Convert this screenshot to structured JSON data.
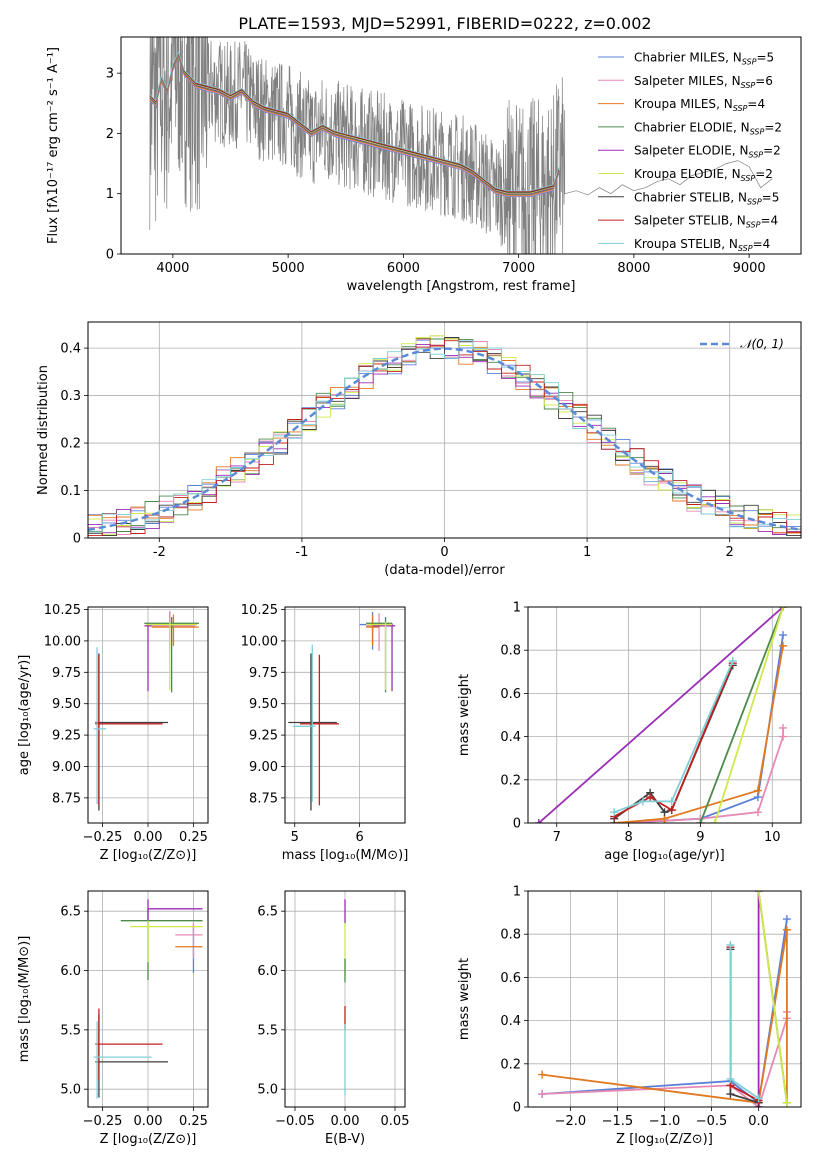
{
  "figure_title": "PLATE=1593, MJD=52991, FIBERID=0222, z=0.002",
  "models": [
    {
      "name": "Chabrier MILES",
      "nssp": "5",
      "color": "#5b80d8"
    },
    {
      "name": "Salpeter MILES",
      "nssp": "6",
      "color": "#e58ab5"
    },
    {
      "name": "Kroupa MILES",
      "nssp": "4",
      "color": "#e07a20"
    },
    {
      "name": "Chabrier ELODIE",
      "nssp": "2",
      "color": "#4c8a4c"
    },
    {
      "name": "Salpeter ELODIE",
      "nssp": "2",
      "color": "#9a2db5"
    },
    {
      "name": "Kroupa ELODIE",
      "nssp": "2",
      "color": "#cfe84a"
    },
    {
      "name": "Chabrier STELIB",
      "nssp": "5",
      "color": "#3f3f3f"
    },
    {
      "name": "Salpeter STELIB",
      "nssp": "4",
      "color": "#c0201f"
    },
    {
      "name": "Kroupa STELIB",
      "nssp": "4",
      "color": "#7fcfd8"
    }
  ],
  "legend_nssp_prefix": "N",
  "legend_nssp_sub": "SSP",
  "chart_data": [
    {
      "id": "spectrum",
      "type": "line",
      "title": "PLATE=1593, MJD=52991, FIBERID=0222, z=0.002",
      "xlabel": "wavelength [Angstrom, rest frame]",
      "ylabel": "Flux [fλ10⁻¹⁷ erg cm⁻² s⁻¹ A⁻¹]",
      "xlim": [
        3550,
        9450
      ],
      "ylim": [
        0,
        3.6
      ],
      "xticks": [
        4000,
        5000,
        6000,
        7000,
        8000,
        9000
      ],
      "yticks": [
        0,
        1,
        2,
        3
      ],
      "grid": false,
      "legend_position": "top-right",
      "data_color": "#808080",
      "model_x": [
        3800,
        3850,
        3900,
        3950,
        4000,
        4050,
        4100,
        4150,
        4200,
        4300,
        4400,
        4500,
        4600,
        4700,
        4800,
        4900,
        5000,
        5100,
        5200,
        5300,
        5400,
        5500,
        5600,
        5700,
        5800,
        5900,
        6000,
        6100,
        6200,
        6300,
        6400,
        6500,
        6600,
        6700,
        6800,
        6900,
        7000,
        7100,
        7200,
        7300,
        7350
      ],
      "model_y": [
        2.6,
        2.5,
        2.9,
        2.7,
        3.1,
        3.3,
        3.0,
        2.9,
        2.8,
        2.75,
        2.7,
        2.6,
        2.7,
        2.5,
        2.4,
        2.35,
        2.3,
        2.15,
        2.0,
        2.1,
        2.0,
        1.95,
        1.9,
        1.85,
        1.8,
        1.75,
        1.7,
        1.65,
        1.6,
        1.55,
        1.5,
        1.45,
        1.35,
        1.2,
        1.05,
        1.0,
        1.0,
        1.0,
        1.05,
        1.1,
        1.4
      ],
      "data_tail_x": [
        7400,
        7500,
        7600,
        7700,
        7800,
        7900,
        8000,
        8100,
        8200,
        8300,
        8400,
        8500,
        8600,
        8700,
        8800,
        8900,
        9000,
        9100,
        9200
      ],
      "data_tail_y": [
        1.0,
        1.05,
        0.98,
        1.1,
        1.0,
        1.15,
        1.05,
        1.1,
        1.2,
        1.25,
        1.15,
        1.3,
        1.35,
        1.4,
        1.5,
        1.55,
        1.45,
        1.1,
        1.25
      ],
      "noisy_range": [
        3800,
        7400
      ]
    },
    {
      "id": "residuals",
      "type": "line",
      "xlabel": "(data-model)/error",
      "ylabel": "Normed distribution",
      "xlim": [
        -2.5,
        2.5
      ],
      "ylim": [
        0,
        0.455
      ],
      "xticks": [
        -2,
        -1,
        0,
        1,
        2
      ],
      "yticks": [
        0.0,
        0.1,
        0.2,
        0.3,
        0.4
      ],
      "grid": true,
      "legend_position": "top-right",
      "gaussian_label": "𝒩(0, 1)",
      "gaussian_color": "#5b8bd8",
      "bin_width": 0.1
    },
    {
      "id": "age-z",
      "type": "scatter",
      "xlabel": "Z [log₁₀(Z/Z⊙)]",
      "ylabel": "age  [log₁₀(age/yr)]",
      "xlim": [
        -0.33,
        0.33
      ],
      "ylim": [
        8.55,
        10.27
      ],
      "xticks": [
        -0.25,
        0.0,
        0.25
      ],
      "xtick_labels": [
        "−0.25",
        "0.00",
        "0.25"
      ],
      "yticks": [
        8.75,
        9.0,
        9.25,
        9.5,
        9.75,
        10.0,
        10.25
      ],
      "ytick_labels": [
        "8.75",
        "9.00",
        "9.25",
        "9.50",
        "9.75",
        "10.00",
        "10.25"
      ],
      "grid": true,
      "points": [
        {
          "model": 0,
          "x": 0.12,
          "y": 10.13,
          "xerr": [
            0.13,
            0.15
          ],
          "yerr": [
            0.2,
            0.1
          ]
        },
        {
          "model": 1,
          "x": 0.12,
          "y": 10.12,
          "xerr": [
            0.12,
            0.14
          ],
          "yerr": [
            0.2,
            0.12
          ]
        },
        {
          "model": 2,
          "x": 0.14,
          "y": 10.11,
          "xerr": [
            0.12,
            0.14
          ],
          "yerr": [
            0.15,
            0.1
          ]
        },
        {
          "model": 3,
          "x": 0.13,
          "y": 10.14,
          "xerr": [
            0.15,
            0.15
          ],
          "yerr": [
            0.55,
            0.05
          ]
        },
        {
          "model": 4,
          "x": 0.0,
          "y": 10.12,
          "xerr": [
            0.02,
            0.02
          ],
          "yerr": [
            0.52,
            0.02
          ]
        },
        {
          "model": 5,
          "x": 0.12,
          "y": 10.13,
          "xerr": [
            0.13,
            0.15
          ],
          "yerr": [
            0.52,
            0.02
          ]
        },
        {
          "model": 6,
          "x": -0.27,
          "y": 9.35,
          "xerr": [
            0.02,
            0.38
          ],
          "yerr": [
            0.7,
            0.55
          ]
        },
        {
          "model": 7,
          "x": -0.27,
          "y": 9.34,
          "xerr": [
            0.02,
            0.35
          ],
          "yerr": [
            0.65,
            0.55
          ]
        },
        {
          "model": 8,
          "x": -0.28,
          "y": 9.3,
          "xerr": [
            0.02,
            0.05
          ],
          "yerr": [
            0.6,
            0.65
          ]
        }
      ]
    },
    {
      "id": "age-mass",
      "type": "scatter",
      "xlabel": "mass [log₁₀(M/M⊙)]",
      "ylabel": "",
      "xlim": [
        4.85,
        6.7
      ],
      "ylim": [
        8.55,
        10.27
      ],
      "xticks": [
        5,
        6
      ],
      "yticks": [
        8.75,
        9.0,
        9.25,
        9.5,
        9.75,
        10.0,
        10.25
      ],
      "ytick_labels": [
        "8.75",
        "9.00",
        "9.25",
        "9.50",
        "9.75",
        "10.00",
        "10.25"
      ],
      "grid": true,
      "points": [
        {
          "model": 0,
          "x": 6.2,
          "y": 10.13,
          "xerr": [
            0.2,
            0.1
          ],
          "yerr": [
            0.2,
            0.1
          ]
        },
        {
          "model": 1,
          "x": 6.3,
          "y": 10.12,
          "xerr": [
            0.2,
            0.1
          ],
          "yerr": [
            0.2,
            0.1
          ]
        },
        {
          "model": 2,
          "x": 6.2,
          "y": 10.11,
          "xerr": [
            0.1,
            0.1
          ],
          "yerr": [
            0.15,
            0.1
          ]
        },
        {
          "model": 3,
          "x": 6.4,
          "y": 10.14,
          "xerr": [
            0.3,
            0.1
          ],
          "yerr": [
            0.55,
            0.05
          ]
        },
        {
          "model": 4,
          "x": 6.5,
          "y": 10.12,
          "xerr": [
            0.3,
            0.05
          ],
          "yerr": [
            0.52,
            0.02
          ]
        },
        {
          "model": 5,
          "x": 6.4,
          "y": 10.13,
          "xerr": [
            0.3,
            0.1
          ],
          "yerr": [
            0.52,
            0.02
          ]
        },
        {
          "model": 6,
          "x": 5.25,
          "y": 9.35,
          "xerr": [
            0.35,
            0.4
          ],
          "yerr": [
            0.7,
            0.55
          ]
        },
        {
          "model": 7,
          "x": 5.38,
          "y": 9.34,
          "xerr": [
            0.3,
            0.3
          ],
          "yerr": [
            0.65,
            0.55
          ]
        },
        {
          "model": 8,
          "x": 5.27,
          "y": 9.32,
          "xerr": [
            0.3,
            0.05
          ],
          "yerr": [
            0.6,
            0.65
          ]
        }
      ]
    },
    {
      "id": "weight-age",
      "type": "line",
      "xlabel": "age  [log₁₀(age/yr)]",
      "ylabel": "mass weight",
      "xlim": [
        6.6,
        10.4
      ],
      "ylim": [
        0,
        1.0
      ],
      "xticks": [
        7,
        8,
        9,
        10
      ],
      "yticks": [
        0.0,
        0.2,
        0.4,
        0.6,
        0.8,
        1.0
      ],
      "grid": true,
      "series": [
        {
          "model": 0,
          "x": [
            7.8,
            8.5,
            9.0,
            9.8,
            10.15
          ],
          "y": [
            0.0,
            0.01,
            0.02,
            0.12,
            0.87
          ]
        },
        {
          "model": 1,
          "x": [
            7.8,
            8.5,
            9.0,
            9.8,
            10.15,
            10.15
          ],
          "y": [
            0.0,
            0.01,
            0.02,
            0.05,
            0.4,
            0.44
          ]
        },
        {
          "model": 2,
          "x": [
            7.8,
            8.5,
            9.8,
            10.15
          ],
          "y": [
            0.0,
            0.02,
            0.15,
            0.82
          ]
        },
        {
          "model": 3,
          "x": [
            9.0,
            10.15
          ],
          "y": [
            0.0,
            1.0
          ]
        },
        {
          "model": 4,
          "x": [
            6.75,
            10.15
          ],
          "y": [
            0.0,
            1.0
          ]
        },
        {
          "model": 5,
          "x": [
            9.2,
            10.15
          ],
          "y": [
            0.0,
            1.0
          ]
        },
        {
          "model": 6,
          "x": [
            7.8,
            8.3,
            8.5,
            8.6,
            9.45
          ],
          "y": [
            0.02,
            0.14,
            0.05,
            0.06,
            0.73
          ]
        },
        {
          "model": 7,
          "x": [
            7.8,
            8.3,
            8.6,
            9.45
          ],
          "y": [
            0.03,
            0.12,
            0.06,
            0.74
          ]
        },
        {
          "model": 8,
          "x": [
            7.8,
            8.2,
            8.6,
            9.45
          ],
          "y": [
            0.05,
            0.1,
            0.1,
            0.75
          ]
        }
      ]
    },
    {
      "id": "mass-z",
      "type": "scatter",
      "xlabel": "Z [log₁₀(Z/Z⊙)]",
      "ylabel": "mass [log₁₀(M/M⊙)]",
      "xlim": [
        -0.33,
        0.33
      ],
      "ylim": [
        4.85,
        6.67
      ],
      "xticks": [
        -0.25,
        0.0,
        0.25
      ],
      "xtick_labels": [
        "−0.25",
        "0.00",
        "0.25"
      ],
      "yticks": [
        5.0,
        5.5,
        6.0,
        6.5
      ],
      "ytick_labels": [
        "5.0",
        "5.5",
        "6.0",
        "6.5"
      ],
      "grid": true,
      "points": [
        {
          "model": 0,
          "x": 0.25,
          "y": 6.28,
          "xerr": [
            0.0,
            0.0
          ],
          "yerr": [
            0.3,
            0.1
          ]
        },
        {
          "model": 1,
          "x": 0.25,
          "y": 6.3,
          "xerr": [
            0.1,
            0.05
          ],
          "yerr": [
            0.2,
            0.1
          ]
        },
        {
          "model": 2,
          "x": 0.25,
          "y": 6.2,
          "xerr": [
            0.1,
            0.05
          ],
          "yerr": [
            0.0,
            0.0
          ]
        },
        {
          "model": 3,
          "x": 0.0,
          "y": 6.42,
          "xerr": [
            0.15,
            0.3
          ],
          "yerr": [
            0.5,
            0.1
          ]
        },
        {
          "model": 4,
          "x": 0.0,
          "y": 6.52,
          "xerr": [
            0.0,
            0.3
          ],
          "yerr": [
            0.1,
            0.08
          ]
        },
        {
          "model": 5,
          "x": 0.0,
          "y": 6.37,
          "xerr": [
            0.1,
            0.3
          ],
          "yerr": [
            0.3,
            0.05
          ]
        },
        {
          "model": 6,
          "x": -0.27,
          "y": 5.23,
          "xerr": [
            0.02,
            0.38
          ],
          "yerr": [
            0.3,
            0.4
          ]
        },
        {
          "model": 7,
          "x": -0.27,
          "y": 5.38,
          "xerr": [
            0.02,
            0.35
          ],
          "yerr": [
            0.3,
            0.3
          ]
        },
        {
          "model": 8,
          "x": -0.28,
          "y": 5.27,
          "xerr": [
            0.02,
            0.3
          ],
          "yerr": [
            0.35,
            0.3
          ]
        }
      ]
    },
    {
      "id": "mass-ebv",
      "type": "scatter",
      "xlabel": "E(B-V)",
      "ylabel": "",
      "xlim": [
        -0.06,
        0.06
      ],
      "ylim": [
        4.85,
        6.67
      ],
      "xticks": [
        -0.05,
        0.0,
        0.05
      ],
      "xtick_labels": [
        "−0.05",
        "0.00",
        "0.05"
      ],
      "yticks": [
        5.0,
        5.5,
        6.0,
        6.5
      ],
      "ytick_labels": [
        "5.0",
        "5.5",
        "6.0",
        "6.5"
      ],
      "grid": true,
      "points": [
        {
          "model": 4,
          "x": 0.0,
          "y": 6.5,
          "xerr": [
            0,
            0
          ],
          "yerr": [
            0.1,
            0.1
          ]
        },
        {
          "model": 5,
          "x": 0.0,
          "y": 6.2,
          "xerr": [
            0,
            0
          ],
          "yerr": [
            0.25,
            0.2
          ]
        },
        {
          "model": 3,
          "x": 0.0,
          "y": 6.0,
          "xerr": [
            0,
            0
          ],
          "yerr": [
            0.1,
            0.1
          ]
        },
        {
          "model": 7,
          "x": 0.0,
          "y": 5.6,
          "xerr": [
            0,
            0
          ],
          "yerr": [
            0.1,
            0.1
          ]
        },
        {
          "model": 8,
          "x": 0.0,
          "y": 5.25,
          "xerr": [
            0,
            0
          ],
          "yerr": [
            0.3,
            0.3
          ]
        }
      ]
    },
    {
      "id": "weight-z",
      "type": "line",
      "xlabel": "Z [log₁₀(Z/Z⊙)]",
      "ylabel": "mass weight",
      "xlim": [
        -2.45,
        0.45
      ],
      "ylim": [
        0,
        1.0
      ],
      "xticks": [
        -2.0,
        -1.5,
        -1.0,
        -0.5,
        0.0
      ],
      "xtick_labels": [
        "−2.0",
        "−1.5",
        "−1.0",
        "−0.5",
        "0.0"
      ],
      "yticks": [
        0.0,
        0.2,
        0.4,
        0.6,
        0.8,
        1.0
      ],
      "grid": true,
      "series": [
        {
          "model": 0,
          "x": [
            -2.3,
            -0.3,
            0.0,
            0.3
          ],
          "y": [
            0.06,
            0.12,
            0.02,
            0.87
          ]
        },
        {
          "model": 1,
          "x": [
            -2.3,
            -0.3,
            0.0,
            0.3,
            0.3
          ],
          "y": [
            0.06,
            0.1,
            0.0,
            0.41,
            0.44
          ]
        },
        {
          "model": 2,
          "x": [
            -2.3,
            0.0,
            0.3,
            0.3
          ],
          "y": [
            0.15,
            0.02,
            0.82,
            0.02
          ]
        },
        {
          "model": 3,
          "x": [
            0.0,
            0.3
          ],
          "y": [
            1.0,
            0.02
          ]
        },
        {
          "model": 4,
          "x": [
            0.0,
            0.0
          ],
          "y": [
            0.0,
            1.0
          ]
        },
        {
          "model": 5,
          "x": [
            0.0,
            0.3
          ],
          "y": [
            1.0,
            0.02
          ]
        },
        {
          "model": 6,
          "x": [
            -0.3,
            -0.3,
            0.0
          ],
          "y": [
            0.73,
            0.06,
            0.02
          ]
        },
        {
          "model": 7,
          "x": [
            -0.3,
            -0.3,
            0.0
          ],
          "y": [
            0.74,
            0.1,
            0.03
          ]
        },
        {
          "model": 8,
          "x": [
            -0.3,
            -0.3,
            0.0
          ],
          "y": [
            0.75,
            0.13,
            0.04
          ]
        }
      ]
    }
  ]
}
